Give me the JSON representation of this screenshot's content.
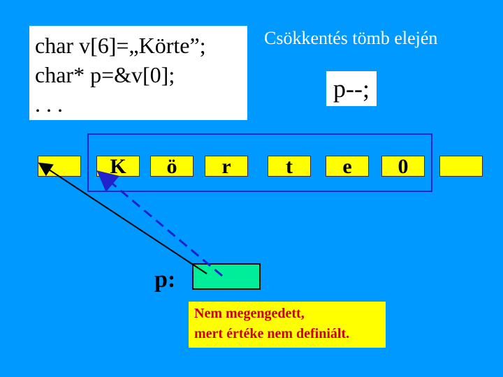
{
  "code": {
    "line1": "char v[6]=„Körte”;",
    "line2": "char* p=&v[0];",
    "line3": ". . ."
  },
  "title": "Csökkentés tömb elején",
  "operation": "p--;",
  "array": {
    "cells": [
      "",
      "K",
      "ö",
      "r",
      "t",
      "e",
      "0",
      ""
    ]
  },
  "pointer": {
    "label": "p:"
  },
  "note": {
    "line1": "Nem megengedett,",
    "line2": "mert értéke nem definiált."
  },
  "colors": {
    "background": "#0099ff",
    "cell": "#ffff00",
    "pointer_box": "#00ee99",
    "note_text": "#cc0000",
    "frame": "#2222cc",
    "dashed_arrow": "#2222cc"
  }
}
